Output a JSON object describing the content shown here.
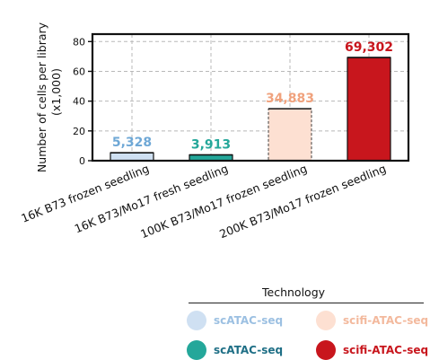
{
  "chart_data": {
    "type": "bar",
    "title": "",
    "ylabel": "Number of cells per library (x1,000)",
    "ylim": [
      0,
      85
    ],
    "yticks": [
      0,
      20,
      40,
      60,
      80
    ],
    "grid": true,
    "categories": [
      "16K B73 frozen seedling",
      "16K B73/Mo17 fresh seedling",
      "100K B73/Mo17 frozen seedling",
      "200K B73/Mo17 frozen seedling"
    ],
    "values": [
      5.328,
      3.913,
      34.883,
      69.302
    ],
    "value_labels": [
      "5,328",
      "3,913",
      "34,883",
      "69,302"
    ],
    "bar_colors": [
      "#cfe0f2",
      "#24a79a",
      "#fde0d2",
      "#c8161d"
    ],
    "label_colors": [
      "#6fa8d6",
      "#24a79a",
      "#f0a27d",
      "#c8161d"
    ]
  },
  "legend": {
    "title": "Technology",
    "items": [
      {
        "label": "scATAC-seq",
        "swatch": "#cfe0f2",
        "text_color": "#9cc0e2"
      },
      {
        "label": "scifi-ATAC-seq",
        "swatch": "#fde0d2",
        "text_color": "#f3b99d"
      },
      {
        "label": "scATAC-seq",
        "swatch": "#24a79a",
        "text_color": "#1f6f86"
      },
      {
        "label": "scifi-ATAC-seq",
        "swatch": "#c8161d",
        "text_color": "#c8161d"
      }
    ]
  }
}
